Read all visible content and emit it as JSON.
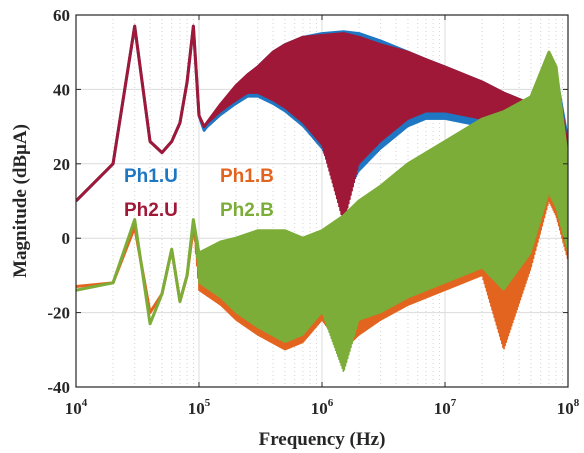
{
  "chart_data": {
    "type": "line",
    "xlabel": "Frequency (Hz)",
    "ylabel": "Magnitude (dBμA)",
    "xscale": "log",
    "xlim": [
      10000,
      100000000
    ],
    "ylim": [
      -40,
      60
    ],
    "x_ticks": [
      {
        "value": 10000,
        "base": "10",
        "exp": "4"
      },
      {
        "value": 100000,
        "base": "10",
        "exp": "5"
      },
      {
        "value": 1000000,
        "base": "10",
        "exp": "6"
      },
      {
        "value": 10000000,
        "base": "10",
        "exp": "7"
      },
      {
        "value": 100000000,
        "base": "10",
        "exp": "8"
      }
    ],
    "y_ticks": [
      -40,
      -20,
      0,
      20,
      40,
      60
    ],
    "grid": true,
    "legend_position": "left-center",
    "series": [
      {
        "name": "Ph1.U",
        "color": "#1f77c4",
        "x": [
          10000,
          20000,
          30000,
          40000,
          50000,
          60000,
          70000,
          80000,
          90000,
          100000,
          110000,
          150000,
          200000,
          250000,
          300000,
          400000,
          500000,
          700000,
          1000000,
          1500000,
          2000000,
          3000000,
          5000000,
          7000000,
          10000000,
          20000000,
          30000000,
          50000000,
          70000000,
          80000000,
          100000000
        ],
        "y": [
          10,
          20,
          57,
          26,
          23,
          26,
          31,
          42,
          57,
          33,
          29,
          35,
          40,
          44,
          46,
          50,
          52,
          54,
          55,
          55.5,
          55,
          53,
          50,
          48,
          46,
          42,
          39,
          36,
          47,
          44,
          26
        ],
        "envelope_low": [
          10,
          20,
          57,
          26,
          23,
          26,
          31,
          42,
          57,
          33,
          29,
          33,
          36,
          38,
          38,
          36,
          34,
          30,
          24,
          10,
          18,
          24,
          30,
          32,
          32,
          30,
          28,
          26,
          40,
          36,
          16
        ]
      },
      {
        "name": "Ph1.B",
        "color": "#e2641f",
        "x": [
          10000,
          20000,
          30000,
          40000,
          50000,
          60000,
          70000,
          80000,
          90000,
          100000,
          150000,
          200000,
          300000,
          500000,
          700000,
          1000000,
          1500000,
          2000000,
          3000000,
          5000000,
          10000000,
          20000000,
          30000000,
          50000000,
          70000000,
          80000000,
          100000000
        ],
        "y": [
          -13,
          -12,
          3,
          -20,
          -15,
          -3,
          -17,
          -10,
          3,
          -5,
          -3,
          -2,
          0,
          0,
          -2,
          0,
          4,
          8,
          12,
          18,
          24,
          30,
          32,
          36,
          48,
          44,
          18
        ],
        "envelope_low": [
          -13,
          -12,
          3,
          -20,
          -15,
          -3,
          -17,
          -10,
          3,
          -14,
          -18,
          -22,
          -26,
          -30,
          -28,
          -22,
          -30,
          -26,
          -22,
          -18,
          -14,
          -10,
          -30,
          -8,
          10,
          6,
          -6
        ]
      },
      {
        "name": "Ph2.U",
        "color": "#a01838",
        "x": [
          10000,
          20000,
          30000,
          40000,
          50000,
          60000,
          70000,
          80000,
          90000,
          100000,
          110000,
          150000,
          200000,
          250000,
          300000,
          400000,
          500000,
          700000,
          1000000,
          1500000,
          2000000,
          3000000,
          5000000,
          7000000,
          10000000,
          20000000,
          30000000,
          50000000,
          70000000,
          80000000,
          100000000
        ],
        "y": [
          10,
          20,
          57,
          26,
          23,
          26,
          31,
          42,
          57,
          33,
          30,
          36,
          41,
          44,
          46,
          50,
          52,
          54,
          54.5,
          55,
          54,
          52,
          50,
          48,
          46,
          42,
          39,
          36,
          45,
          43,
          24
        ],
        "envelope_low": [
          10,
          20,
          57,
          26,
          23,
          26,
          31,
          42,
          57,
          33,
          30,
          34,
          37,
          39,
          39,
          37,
          35,
          31,
          25,
          4,
          20,
          26,
          32,
          34,
          34,
          32,
          29,
          27,
          38,
          34,
          14
        ]
      },
      {
        "name": "Ph2.B",
        "color": "#7bad38",
        "x": [
          10000,
          20000,
          30000,
          40000,
          50000,
          60000,
          70000,
          80000,
          90000,
          100000,
          150000,
          200000,
          300000,
          500000,
          700000,
          1000000,
          1500000,
          2000000,
          3000000,
          5000000,
          10000000,
          20000000,
          30000000,
          50000000,
          70000000,
          80000000,
          100000000
        ],
        "y": [
          -14,
          -12,
          5,
          -23,
          -15,
          -3,
          -17,
          -10,
          5,
          -4,
          -1,
          0,
          2,
          2,
          0,
          2,
          6,
          10,
          14,
          20,
          26,
          32,
          34,
          38,
          50,
          46,
          20
        ],
        "envelope_low": [
          -14,
          -12,
          5,
          -23,
          -15,
          -3,
          -17,
          -10,
          5,
          -12,
          -16,
          -20,
          -24,
          -28,
          -26,
          -20,
          -36,
          -22,
          -20,
          -16,
          -12,
          -8,
          -14,
          -4,
          12,
          8,
          -4
        ]
      }
    ]
  }
}
